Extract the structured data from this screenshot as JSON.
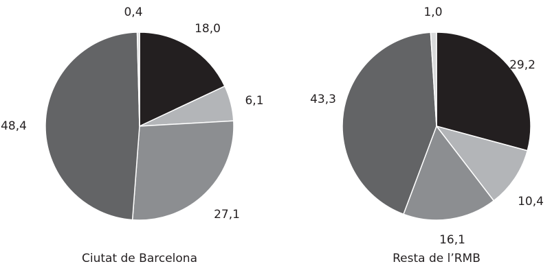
{
  "chart_data": [
    {
      "type": "pie",
      "title": "Ciutat de Barcelona",
      "slices": [
        {
          "value": 18.0,
          "label": "18,0",
          "color": "#231f20"
        },
        {
          "value": 6.1,
          "label": "6,1",
          "color": "#b3b5b8"
        },
        {
          "value": 27.1,
          "label": "27,1",
          "color": "#8c8e91"
        },
        {
          "value": 48.4,
          "label": "48,4",
          "color": "#636466"
        },
        {
          "value": 0.4,
          "label": "0,4",
          "color": "#d9dadb"
        }
      ]
    },
    {
      "type": "pie",
      "title": "Resta de l’RMB",
      "slices": [
        {
          "value": 29.2,
          "label": "29,2",
          "color": "#231f20"
        },
        {
          "value": 10.4,
          "label": "10,4",
          "color": "#b3b5b8"
        },
        {
          "value": 16.1,
          "label": "16,1",
          "color": "#8c8e91"
        },
        {
          "value": 43.3,
          "label": "43,3",
          "color": "#636466"
        },
        {
          "value": 1.0,
          "label": "1,0",
          "color": "#d9dadb"
        }
      ]
    }
  ]
}
